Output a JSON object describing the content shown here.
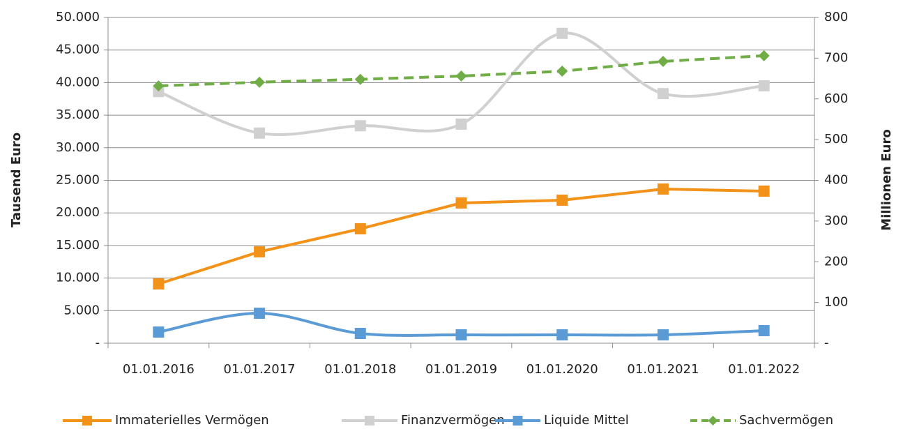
{
  "chart_data": {
    "type": "line",
    "ylabel": "Tausend Euro",
    "y2label": "Millionen Euro",
    "categories": [
      "01.01.2016",
      "01.01.2017",
      "01.01.2018",
      "01.01.2019",
      "01.01.2020",
      "01.01.2021",
      "01.01.2022"
    ],
    "series": [
      {
        "name": "Immaterielles Vermögen",
        "color": "#f39218",
        "marker": "square",
        "smooth": false,
        "dashed": false,
        "axis": "y",
        "values": [
          9100,
          14030,
          17560,
          21520,
          21950,
          23660,
          23340
        ]
      },
      {
        "name": "Finanzvermögen",
        "color": "#d0d0d0",
        "marker": "square",
        "smooth": true,
        "dashed": false,
        "axis": "y2",
        "values": [
          618,
          516,
          534,
          538,
          761,
          613,
          632
        ]
      },
      {
        "name": "Liquide Mittel",
        "color": "#5b9bd5",
        "marker": "square",
        "smooth": true,
        "dashed": false,
        "axis": "y",
        "values": [
          1710,
          4600,
          1500,
          1280,
          1280,
          1280,
          1930
        ]
      },
      {
        "name": "Sachvermögen",
        "color": "#70ad47",
        "marker": "diamond",
        "smooth": false,
        "dashed": true,
        "axis": "y2",
        "values": [
          632,
          641,
          648,
          656,
          668,
          692,
          706
        ]
      }
    ],
    "ylim": [
      0,
      50000
    ],
    "yticks": [
      {
        "value": 0,
        "label": "-"
      },
      {
        "value": 5000,
        "label": "5.000"
      },
      {
        "value": 10000,
        "label": "10.000"
      },
      {
        "value": 15000,
        "label": "15.000"
      },
      {
        "value": 20000,
        "label": "20.000"
      },
      {
        "value": 25000,
        "label": "25.000"
      },
      {
        "value": 30000,
        "label": "30.000"
      },
      {
        "value": 35000,
        "label": "35.000"
      },
      {
        "value": 40000,
        "label": "40.000"
      },
      {
        "value": 45000,
        "label": "45.000"
      },
      {
        "value": 50000,
        "label": "50.000"
      }
    ],
    "y2lim": [
      0,
      800
    ],
    "y2ticks": [
      {
        "value": 0,
        "label": "-"
      },
      100,
      200,
      300,
      400,
      500,
      600,
      700,
      800
    ],
    "grid": true,
    "legend": "bottom"
  }
}
